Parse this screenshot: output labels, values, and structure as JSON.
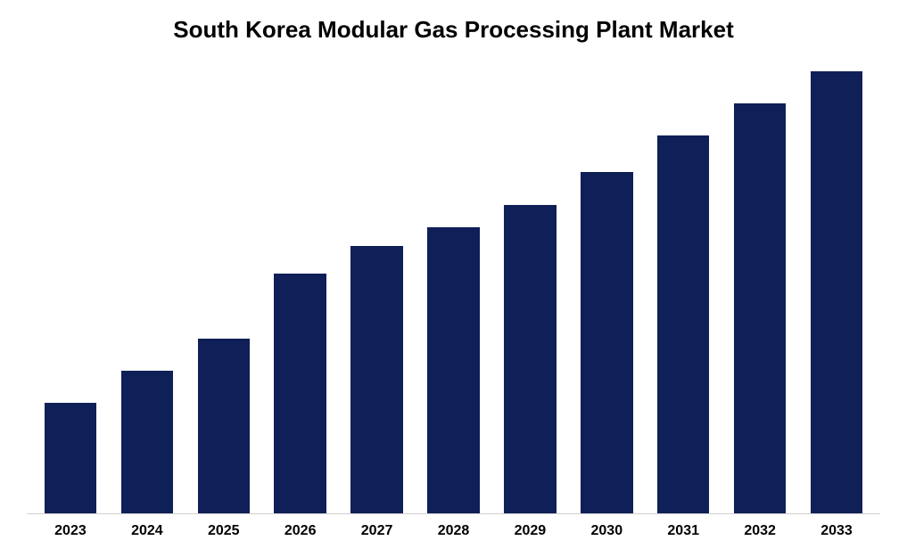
{
  "chart": {
    "type": "bar",
    "title": "South Korea Modular Gas Processing Plant Market",
    "title_fontsize": 26,
    "title_fontweight": 700,
    "title_color": "#000000",
    "categories": [
      "2023",
      "2024",
      "2025",
      "2026",
      "2027",
      "2028",
      "2029",
      "2030",
      "2031",
      "2032",
      "2033"
    ],
    "values": [
      120,
      155,
      190,
      260,
      290,
      310,
      335,
      370,
      410,
      445,
      480
    ],
    "bar_color": "#0f1f57",
    "background_color": "#ffffff",
    "axis_line_color": "#d0d0d0",
    "x_label_fontsize": 16,
    "x_label_fontweight": 700,
    "x_label_color": "#000000",
    "ylim": [
      0,
      500
    ],
    "bar_width_ratio": 0.68,
    "grid": false
  }
}
